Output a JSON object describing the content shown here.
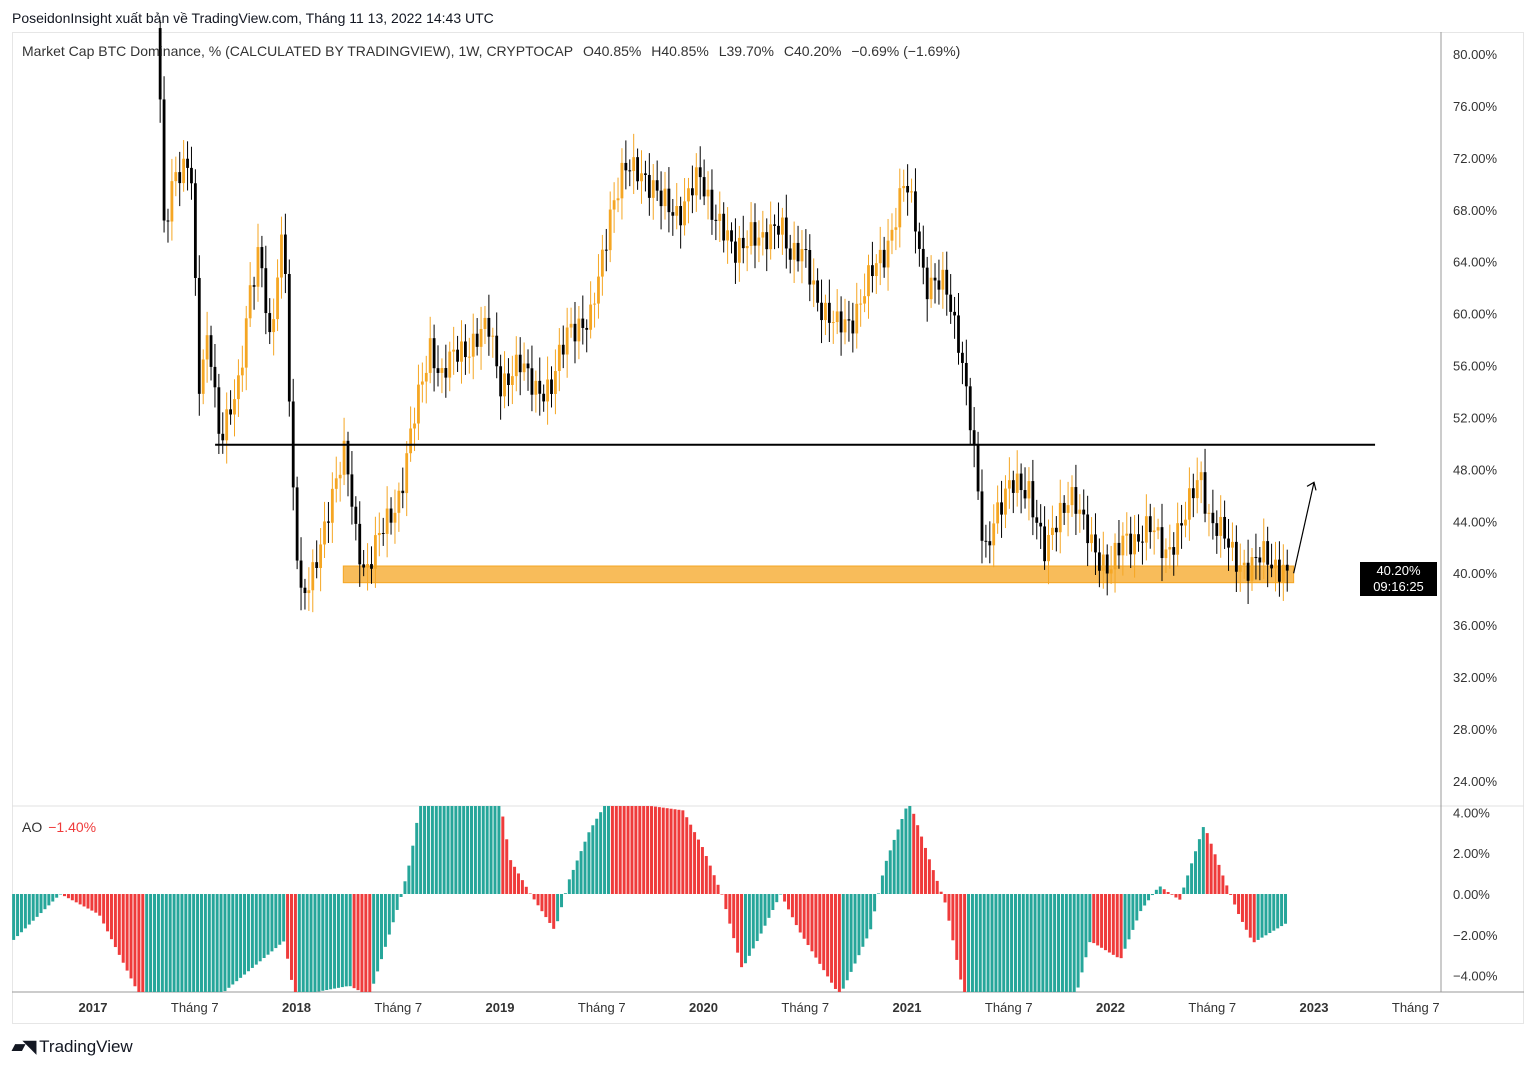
{
  "header": {
    "publisher_line": "PoseidonInsight xuất bản về TradingView.com, Tháng 11 13, 2022 14:43 UTC"
  },
  "legend": {
    "symbol": "Market Cap BTC Dominance, % (CALCULATED BY TRADINGVIEW), 1W, CRYPTOCAP",
    "open": "O40.85%",
    "high": "H40.85%",
    "low": "L39.70%",
    "close": "C40.20%",
    "change": "−0.69% (−1.69%)"
  },
  "ao_legend": {
    "name": "AO",
    "value": "−1.40%"
  },
  "price_tag": {
    "price": "40.20%",
    "countdown": "09:16:25"
  },
  "logo": {
    "text": "TradingView",
    "mark": "17"
  },
  "colors": {
    "up": "#f5a623",
    "down": "#000000",
    "ao_up": "#26a69a",
    "ao_down": "#ef3b3b",
    "zone": "#f5a623"
  },
  "chart_data": [
    {
      "type": "candlestick",
      "title": "Market Cap BTC Dominance, % (CALCULATED BY TRADINGVIEW), 1W, CRYPTOCAP",
      "interval": "1W",
      "ylim": [
        22,
        82
      ],
      "y_ticks": [
        "80.00%",
        "76.00%",
        "72.00%",
        "68.00%",
        "64.00%",
        "60.00%",
        "56.00%",
        "52.00%",
        "48.00%",
        "44.00%",
        "40.00%",
        "36.00%",
        "32.00%",
        "28.00%",
        "24.00%"
      ],
      "y_tick_values": [
        80,
        76,
        72,
        68,
        64,
        60,
        56,
        52,
        48,
        44,
        40,
        36,
        32,
        28,
        24
      ],
      "x_ticks": [
        {
          "t": 2017.0,
          "label": "2017",
          "year": true
        },
        {
          "t": 2017.5,
          "label": "Tháng 7"
        },
        {
          "t": 2018.0,
          "label": "2018",
          "year": true
        },
        {
          "t": 2018.5,
          "label": "Tháng 7"
        },
        {
          "t": 2019.0,
          "label": "2019",
          "year": true
        },
        {
          "t": 2019.5,
          "label": "Tháng 7"
        },
        {
          "t": 2020.0,
          "label": "2020",
          "year": true
        },
        {
          "t": 2020.5,
          "label": "Tháng 7"
        },
        {
          "t": 2021.0,
          "label": "2021",
          "year": true
        },
        {
          "t": 2021.5,
          "label": "Tháng 7"
        },
        {
          "t": 2022.0,
          "label": "2022",
          "year": true
        },
        {
          "t": 2022.5,
          "label": "Tháng 7"
        },
        {
          "t": 2023.0,
          "label": "2023",
          "year": true
        },
        {
          "t": 2023.5,
          "label": "Tháng 7"
        }
      ],
      "close_keypoints": [
        [
          2017.3,
          82
        ],
        [
          2017.33,
          76.5
        ],
        [
          2017.35,
          65.7
        ],
        [
          2017.4,
          70.3
        ],
        [
          2017.48,
          72.6
        ],
        [
          2017.52,
          54
        ],
        [
          2017.57,
          58
        ],
        [
          2017.62,
          51
        ],
        [
          2017.72,
          54
        ],
        [
          2017.77,
          61.8
        ],
        [
          2017.82,
          65.7
        ],
        [
          2017.87,
          57
        ],
        [
          2017.94,
          67.2
        ],
        [
          2017.97,
          50.3
        ],
        [
          2018.02,
          38
        ],
        [
          2018.07,
          38.7
        ],
        [
          2018.16,
          45.6
        ],
        [
          2018.24,
          49
        ],
        [
          2018.29,
          43.3
        ],
        [
          2018.34,
          40.2
        ],
        [
          2018.41,
          42.6
        ],
        [
          2018.51,
          46.4
        ],
        [
          2018.58,
          51.8
        ],
        [
          2018.66,
          58
        ],
        [
          2018.71,
          54.9
        ],
        [
          2018.8,
          57.2
        ],
        [
          2018.95,
          58.7
        ],
        [
          2019.0,
          54.9
        ],
        [
          2019.1,
          55.7
        ],
        [
          2019.25,
          53.7
        ],
        [
          2019.34,
          59.5
        ],
        [
          2019.44,
          58.7
        ],
        [
          2019.54,
          68
        ],
        [
          2019.61,
          70.7
        ],
        [
          2019.69,
          71.4
        ],
        [
          2019.79,
          68.4
        ],
        [
          2019.88,
          68
        ],
        [
          2019.98,
          70.3
        ],
        [
          2020.08,
          67.2
        ],
        [
          2020.15,
          64.1
        ],
        [
          2020.23,
          66.8
        ],
        [
          2020.3,
          64.9
        ],
        [
          2020.38,
          67.6
        ],
        [
          2020.43,
          64.5
        ],
        [
          2020.5,
          64.1
        ],
        [
          2020.57,
          61
        ],
        [
          2020.65,
          58.7
        ],
        [
          2020.72,
          59.5
        ],
        [
          2020.82,
          62.6
        ],
        [
          2020.89,
          64.9
        ],
        [
          2020.99,
          69.9
        ],
        [
          2021.04,
          67.2
        ],
        [
          2021.09,
          62.6
        ],
        [
          2021.19,
          61.8
        ],
        [
          2021.26,
          58
        ],
        [
          2021.31,
          51.8
        ],
        [
          2021.38,
          41
        ],
        [
          2021.43,
          44.9
        ],
        [
          2021.51,
          46.4
        ],
        [
          2021.6,
          46.8
        ],
        [
          2021.68,
          41
        ],
        [
          2021.75,
          44.9
        ],
        [
          2021.8,
          46.4
        ],
        [
          2021.87,
          43.3
        ],
        [
          2022.0,
          40.2
        ],
        [
          2022.07,
          42.6
        ],
        [
          2022.19,
          43.3
        ],
        [
          2022.27,
          41.8
        ],
        [
          2022.37,
          44.1
        ],
        [
          2022.44,
          48
        ],
        [
          2022.49,
          44.1
        ],
        [
          2022.59,
          41.8
        ],
        [
          2022.69,
          40.2
        ],
        [
          2022.76,
          41.4
        ],
        [
          2022.87,
          40.2
        ]
      ],
      "last_close": 40.2,
      "annotations": {
        "resistance_line": {
          "value": 49.9,
          "from": 2017.6,
          "to": 2023.3
        },
        "support_zone": {
          "low": 39.5,
          "high": 40.4,
          "from": 2018.23,
          "to": 2022.9
        },
        "arrow": {
          "from": [
            2022.9,
            40.0
          ],
          "to": [
            2023.0,
            47.0
          ]
        }
      }
    },
    {
      "type": "bar",
      "title": "AO",
      "current_value": -1.4,
      "ylim": [
        -4.6,
        4.6
      ],
      "y_ticks": [
        "4.00%",
        "2.00%",
        "0.00%",
        "−2.00%",
        "−4.00%"
      ],
      "y_tick_values": [
        4,
        2,
        0,
        -2,
        -4
      ],
      "keypoints": [
        [
          2016.61,
          -2.25
        ],
        [
          2016.84,
          0
        ],
        [
          2017.03,
          -1.0
        ],
        [
          2017.23,
          -5
        ],
        [
          2017.62,
          -5
        ],
        [
          2017.94,
          -2.3
        ],
        [
          2017.99,
          -5
        ],
        [
          2018.26,
          -4.5
        ],
        [
          2018.36,
          -5
        ],
        [
          2018.51,
          -0.3
        ],
        [
          2018.56,
          1.7
        ],
        [
          2018.61,
          4.6
        ],
        [
          2019.0,
          4.6
        ],
        [
          2019.05,
          1.7
        ],
        [
          2019.15,
          0
        ],
        [
          2019.27,
          -1.8
        ],
        [
          2019.34,
          0.7
        ],
        [
          2019.44,
          3.1
        ],
        [
          2019.53,
          4.6
        ],
        [
          2019.9,
          4.1
        ],
        [
          2020.0,
          2.2
        ],
        [
          2020.09,
          0
        ],
        [
          2020.19,
          -3.7
        ],
        [
          2020.28,
          -2.0
        ],
        [
          2020.38,
          0
        ],
        [
          2020.47,
          -1.8
        ],
        [
          2020.67,
          -5
        ],
        [
          2020.82,
          -1.8
        ],
        [
          2020.89,
          1.4
        ],
        [
          2021.01,
          4.6
        ],
        [
          2021.11,
          1.7
        ],
        [
          2021.19,
          -0.5
        ],
        [
          2021.28,
          -5
        ],
        [
          2021.83,
          -5
        ],
        [
          2021.9,
          -2.3
        ],
        [
          2022.05,
          -3.2
        ],
        [
          2022.15,
          -0.8
        ],
        [
          2022.24,
          0.4
        ],
        [
          2022.34,
          -0.3
        ],
        [
          2022.46,
          3.4
        ],
        [
          2022.56,
          0.7
        ],
        [
          2022.63,
          -1.0
        ],
        [
          2022.7,
          -2.4
        ],
        [
          2022.87,
          -1.4
        ]
      ]
    }
  ]
}
